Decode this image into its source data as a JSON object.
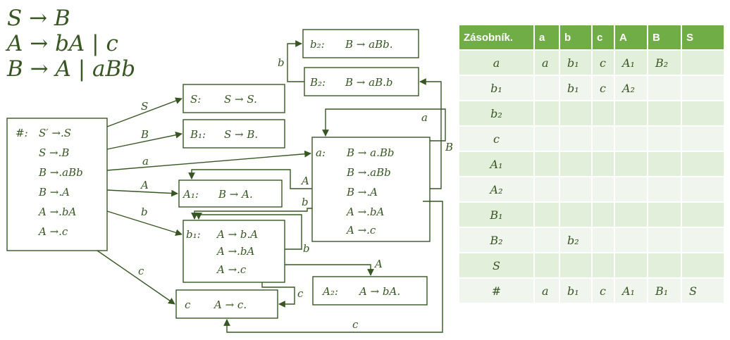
{
  "grammar": [
    "S → B",
    "A → bA | c",
    "B → A | aBb"
  ],
  "states": {
    "hash": {
      "name": "#:",
      "items": [
        "S′ →.S",
        "S →.B",
        "B →.aBb",
        "B →.A",
        "A →.bA",
        "A →.c"
      ]
    },
    "S": {
      "name": "S:",
      "items": [
        "S → S."
      ]
    },
    "B1": {
      "name": "B₁:",
      "items": [
        "S → B."
      ]
    },
    "b2": {
      "name": "b₂:",
      "items": [
        "B → aBb."
      ]
    },
    "B2": {
      "name": "B₂:",
      "items": [
        "B → aB.b"
      ]
    },
    "a": {
      "name": "a:",
      "items": [
        "B → a.Bb",
        "B →.aBb",
        "B →.A",
        "A →.bA",
        "A →.c"
      ]
    },
    "A1": {
      "name": "A₁:",
      "items": [
        "B → A."
      ]
    },
    "b1": {
      "name": "b₁:",
      "items": [
        "A → b.A",
        "A →.bA",
        "A →.c"
      ]
    },
    "c": {
      "name": "c",
      "items": [
        "A → c."
      ]
    },
    "A2": {
      "name": "A₂:",
      "items": [
        "A → bA."
      ]
    }
  },
  "edge_labels": {
    "hash_S": "S",
    "hash_B1": "B",
    "hash_a": "a",
    "hash_A1": "A",
    "hash_b1": "b",
    "hash_c": "c",
    "B2_b2": "b",
    "a_loop": "a",
    "a_B2": "B",
    "a_A1": "A",
    "a_b1": "b",
    "a_c": "c",
    "b1_loop": "b",
    "b1_A2": "A",
    "b1_c": "c"
  },
  "table": {
    "headers": [
      "Zásobník.",
      "a",
      "b",
      "c",
      "A",
      "B",
      "S"
    ],
    "rows": [
      [
        "a",
        "a",
        "b₁",
        "c",
        "A₁",
        "B₂",
        ""
      ],
      [
        "b₁",
        "",
        "b₁",
        "c",
        "A₂",
        "",
        ""
      ],
      [
        "b₂",
        "",
        "",
        "",
        "",
        "",
        ""
      ],
      [
        "c",
        "",
        "",
        "",
        "",
        "",
        ""
      ],
      [
        "A₁",
        "",
        "",
        "",
        "",
        "",
        ""
      ],
      [
        "A₂",
        "",
        "",
        "",
        "",
        "",
        ""
      ],
      [
        "B₁",
        "",
        "",
        "",
        "",
        "",
        ""
      ],
      [
        "B₂",
        "",
        "b₂",
        "",
        "",
        "",
        ""
      ],
      [
        "S",
        "",
        "",
        "",
        "",
        "",
        ""
      ],
      [
        "#",
        "a",
        "b₁",
        "c",
        "A₁",
        "B₁",
        "S"
      ]
    ]
  },
  "colors": {
    "accent": "#70AD47",
    "text": "#375623",
    "row_odd": "#E2EFDA",
    "row_even": "#F0F5ED",
    "line": "#375623"
  }
}
